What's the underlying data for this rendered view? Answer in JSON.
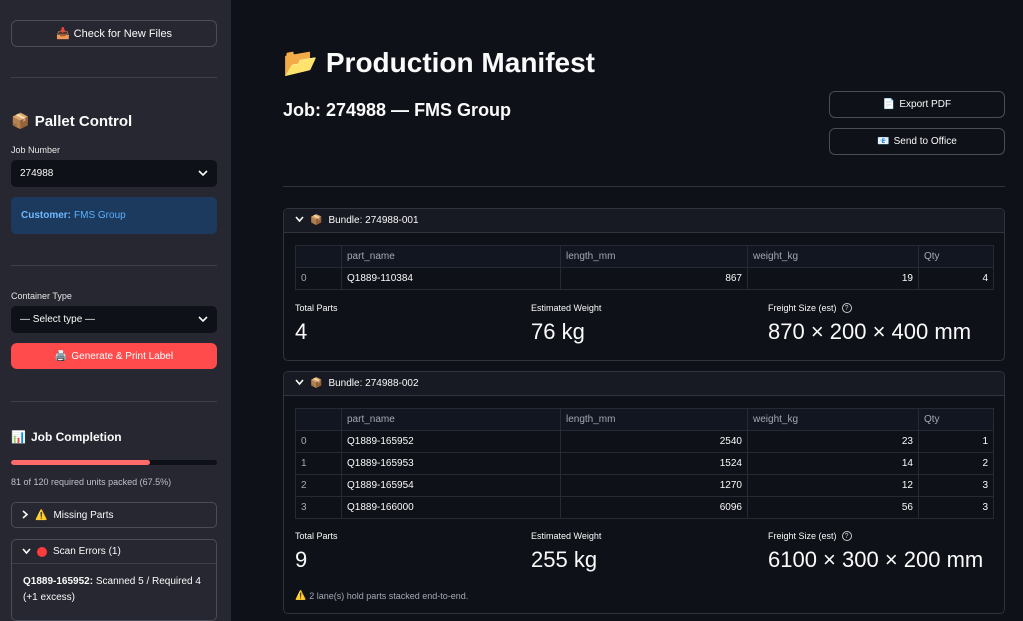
{
  "sidebar": {
    "check_button": "Check for New Files",
    "check_icon": "📥",
    "pallet_title": "Pallet Control",
    "pallet_icon": "📦",
    "job_number_label": "Job Number",
    "job_number_value": "274988",
    "customer_label": "Customer:",
    "customer_value": "FMS Group",
    "container_label": "Container Type",
    "container_value": "— Select type —",
    "generate_button": "Generate & Print Label",
    "generate_icon": "🖨️",
    "completion_title": "Job Completion",
    "completion_icon": "📊",
    "progress_fraction": 0.675,
    "progress_text": "81 of 120 required units packed (67.5%)",
    "missing_parts": {
      "icon": "⚠️",
      "label": "Missing Parts"
    },
    "scan_errors": {
      "label": "Scan Errors (1)",
      "part": "Q1889-165952:",
      "detail": "Scanned 5 / Required 4 (+1 excess)"
    }
  },
  "main": {
    "title": "Production Manifest",
    "title_icon": "📂",
    "subtitle": "Job: 274988 — FMS Group",
    "export_button": "Export PDF",
    "export_icon": "📄",
    "send_button": "Send to Office",
    "send_icon": "📧",
    "columns": [
      "part_name",
      "length_mm",
      "weight_kg",
      "Qty"
    ],
    "bundles": [
      {
        "label": "Bundle: 274988-001",
        "icon": "📦",
        "rows": [
          {
            "idx": "0",
            "part_name": "Q1889-110384",
            "length_mm": "867",
            "weight_kg": "19",
            "qty": "4"
          }
        ],
        "metrics": {
          "total_parts_label": "Total Parts",
          "total_parts": "4",
          "weight_label": "Estimated Weight",
          "weight": "76 kg",
          "freight_label": "Freight Size (est)",
          "freight": "870 × 200 × 400 mm"
        }
      },
      {
        "label": "Bundle: 274988-002",
        "icon": "📦",
        "rows": [
          {
            "idx": "0",
            "part_name": "Q1889-165952",
            "length_mm": "2540",
            "weight_kg": "23",
            "qty": "1"
          },
          {
            "idx": "1",
            "part_name": "Q1889-165953",
            "length_mm": "1524",
            "weight_kg": "14",
            "qty": "2"
          },
          {
            "idx": "2",
            "part_name": "Q1889-165954",
            "length_mm": "1270",
            "weight_kg": "12",
            "qty": "3"
          },
          {
            "idx": "3",
            "part_name": "Q1889-166000",
            "length_mm": "6096",
            "weight_kg": "56",
            "qty": "3"
          }
        ],
        "metrics": {
          "total_parts_label": "Total Parts",
          "total_parts": "9",
          "weight_label": "Estimated Weight",
          "weight": "255 kg",
          "freight_label": "Freight Size (est)",
          "freight": "6100 × 300 × 200 mm"
        },
        "note": "2 lane(s) hold parts stacked end-to-end.",
        "note_icon": "⚠️"
      }
    ]
  }
}
